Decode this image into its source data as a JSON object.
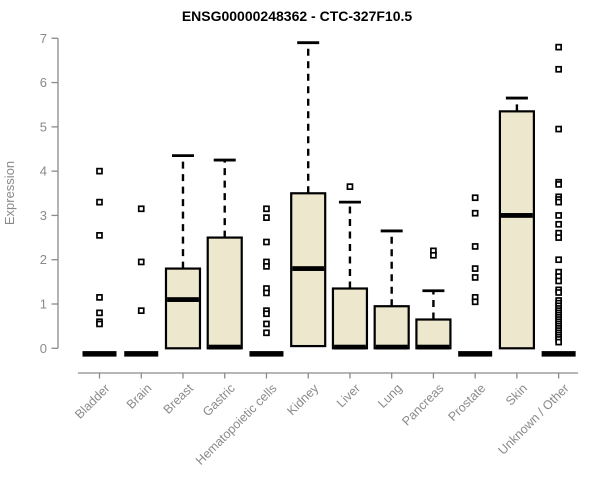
{
  "chart_data": {
    "type": "boxplot",
    "title": "ENSG00000248362 - CTC-327F10.5",
    "ylabel": "Expression",
    "xlabel": "",
    "ylim": [
      0,
      7
    ],
    "yticks": [
      0,
      1,
      2,
      3,
      4,
      5,
      6,
      7
    ],
    "grid": false,
    "legend": "none",
    "colors": {
      "box_fill": "#ECE7CD",
      "box_stroke": "#000000",
      "median": "#000000",
      "whisker": "#000000",
      "outlier_stroke": "#000000",
      "outlier_fill": "#ffffff",
      "axis": "#8a8a8a",
      "title": "#000000",
      "background": "#ffffff"
    },
    "categories": [
      "Bladder",
      "Brain",
      "Breast",
      "Gastric",
      "Hematopoietic cells",
      "Kidney",
      "Liver",
      "Lung",
      "Pancreas",
      "Prostate",
      "Skin",
      "Unknown / Other"
    ],
    "series": [
      {
        "label": "Bladder",
        "collapsed": true,
        "q1": 0,
        "median": 0,
        "q3": 0,
        "whisker_high": 0,
        "outliers": [
          4.0,
          3.3,
          2.55,
          1.15,
          0.8,
          0.6,
          0.55
        ]
      },
      {
        "label": "Brain",
        "collapsed": true,
        "q1": 0,
        "median": 0,
        "q3": 0,
        "whisker_high": 0,
        "outliers": [
          3.15,
          1.95,
          0.85
        ]
      },
      {
        "label": "Breast",
        "collapsed": false,
        "q1": 0,
        "median": 1.1,
        "q3": 1.8,
        "whisker_high": 4.35,
        "outliers": []
      },
      {
        "label": "Gastric",
        "collapsed": false,
        "q1": 0,
        "median": 0,
        "q3": 2.5,
        "whisker_high": 4.25,
        "outliers": []
      },
      {
        "label": "Hematopoietic cells",
        "collapsed": true,
        "q1": 0,
        "median": 0,
        "q3": 0,
        "whisker_high": 0,
        "outliers": [
          3.15,
          2.95,
          2.4,
          1.95,
          1.85,
          1.35,
          1.25,
          0.85,
          0.78,
          0.55,
          0.35
        ]
      },
      {
        "label": "Kidney",
        "collapsed": false,
        "q1": 0.05,
        "median": 1.8,
        "q3": 3.5,
        "whisker_high": 6.9,
        "outliers": []
      },
      {
        "label": "Liver",
        "collapsed": false,
        "q1": 0,
        "median": 0,
        "q3": 1.35,
        "whisker_high": 3.3,
        "outliers": [
          3.65
        ]
      },
      {
        "label": "Lung",
        "collapsed": false,
        "q1": 0,
        "median": 0,
        "q3": 0.95,
        "whisker_high": 2.65,
        "outliers": []
      },
      {
        "label": "Pancreas",
        "collapsed": false,
        "q1": 0,
        "median": 0,
        "q3": 0.65,
        "whisker_high": 1.3,
        "outliers": [
          2.2,
          2.1
        ]
      },
      {
        "label": "Prostate",
        "collapsed": true,
        "q1": 0,
        "median": 0,
        "q3": 0,
        "whisker_high": 0,
        "outliers": [
          3.4,
          3.05,
          2.3,
          1.8,
          1.6,
          1.15,
          1.05
        ]
      },
      {
        "label": "Skin",
        "collapsed": false,
        "q1": 0,
        "median": 3.0,
        "q3": 5.35,
        "whisker_high": 5.65,
        "outliers": []
      },
      {
        "label": "Unknown / Other",
        "collapsed": true,
        "q1": 0,
        "median": 0,
        "q3": 0,
        "whisker_high": 0,
        "outliers": [
          6.8,
          6.3,
          4.95,
          3.75,
          3.7,
          3.42,
          3.36,
          3.3,
          3.0,
          2.8,
          2.6,
          2.5,
          2.0,
          1.72,
          1.62,
          1.52,
          1.32,
          1.26,
          1.08,
          1.02,
          0.96,
          0.9,
          0.85,
          0.8,
          0.75,
          0.7,
          0.65,
          0.6,
          0.55,
          0.5,
          0.45,
          0.4,
          0.35,
          0.3,
          0.25,
          0.2,
          0.14
        ]
      }
    ]
  }
}
